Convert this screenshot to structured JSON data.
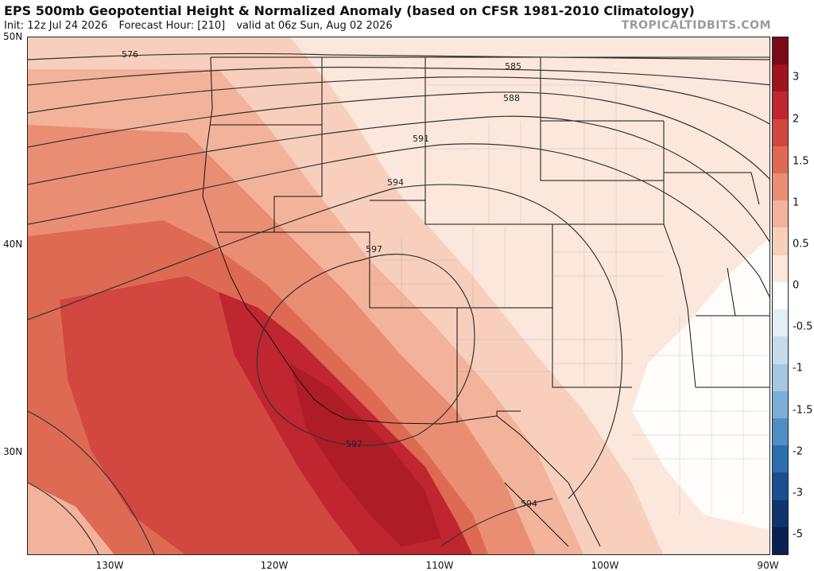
{
  "header": {
    "title": "EPS 500mb Geopotential Height & Normalized Anomaly (based on CFSR 1981-2010 Climatology)",
    "init": "Init: 12z Jul 24 2026",
    "forecast_hour": "Forecast Hour: [210]",
    "valid": "valid at 06z Sun, Aug 02 2026",
    "brand": "TROPICALTIDBITS.COM"
  },
  "map": {
    "lat_labels": [
      "50N",
      "40N",
      "30N"
    ],
    "lon_labels": [
      "130W",
      "120W",
      "110W",
      "100W",
      "90W"
    ],
    "contour_labels": [
      "576",
      "585",
      "588",
      "591",
      "594",
      "597",
      "597",
      "594"
    ],
    "anomaly_core_color": "#b8202e",
    "contour_color": "#333333",
    "border_color": "#111111"
  },
  "colorbar": {
    "labels": [
      "3",
      "2",
      "1.5",
      "1",
      "0.5",
      "0",
      "-0.5",
      "-1",
      "-1.5",
      "-2",
      "-3",
      "-5"
    ],
    "colors": [
      "#7a0a1a",
      "#a0141f",
      "#bf2630",
      "#d2473f",
      "#df6a54",
      "#ea8e73",
      "#f3b39a",
      "#f8cfbd",
      "#fce7dc",
      "#ffffff",
      "#e3eef6",
      "#c6dcec",
      "#a3c6e1",
      "#7aaed5",
      "#4f8fc3",
      "#2c6fae",
      "#1a4f8f",
      "#103470",
      "#0a1f52"
    ]
  }
}
